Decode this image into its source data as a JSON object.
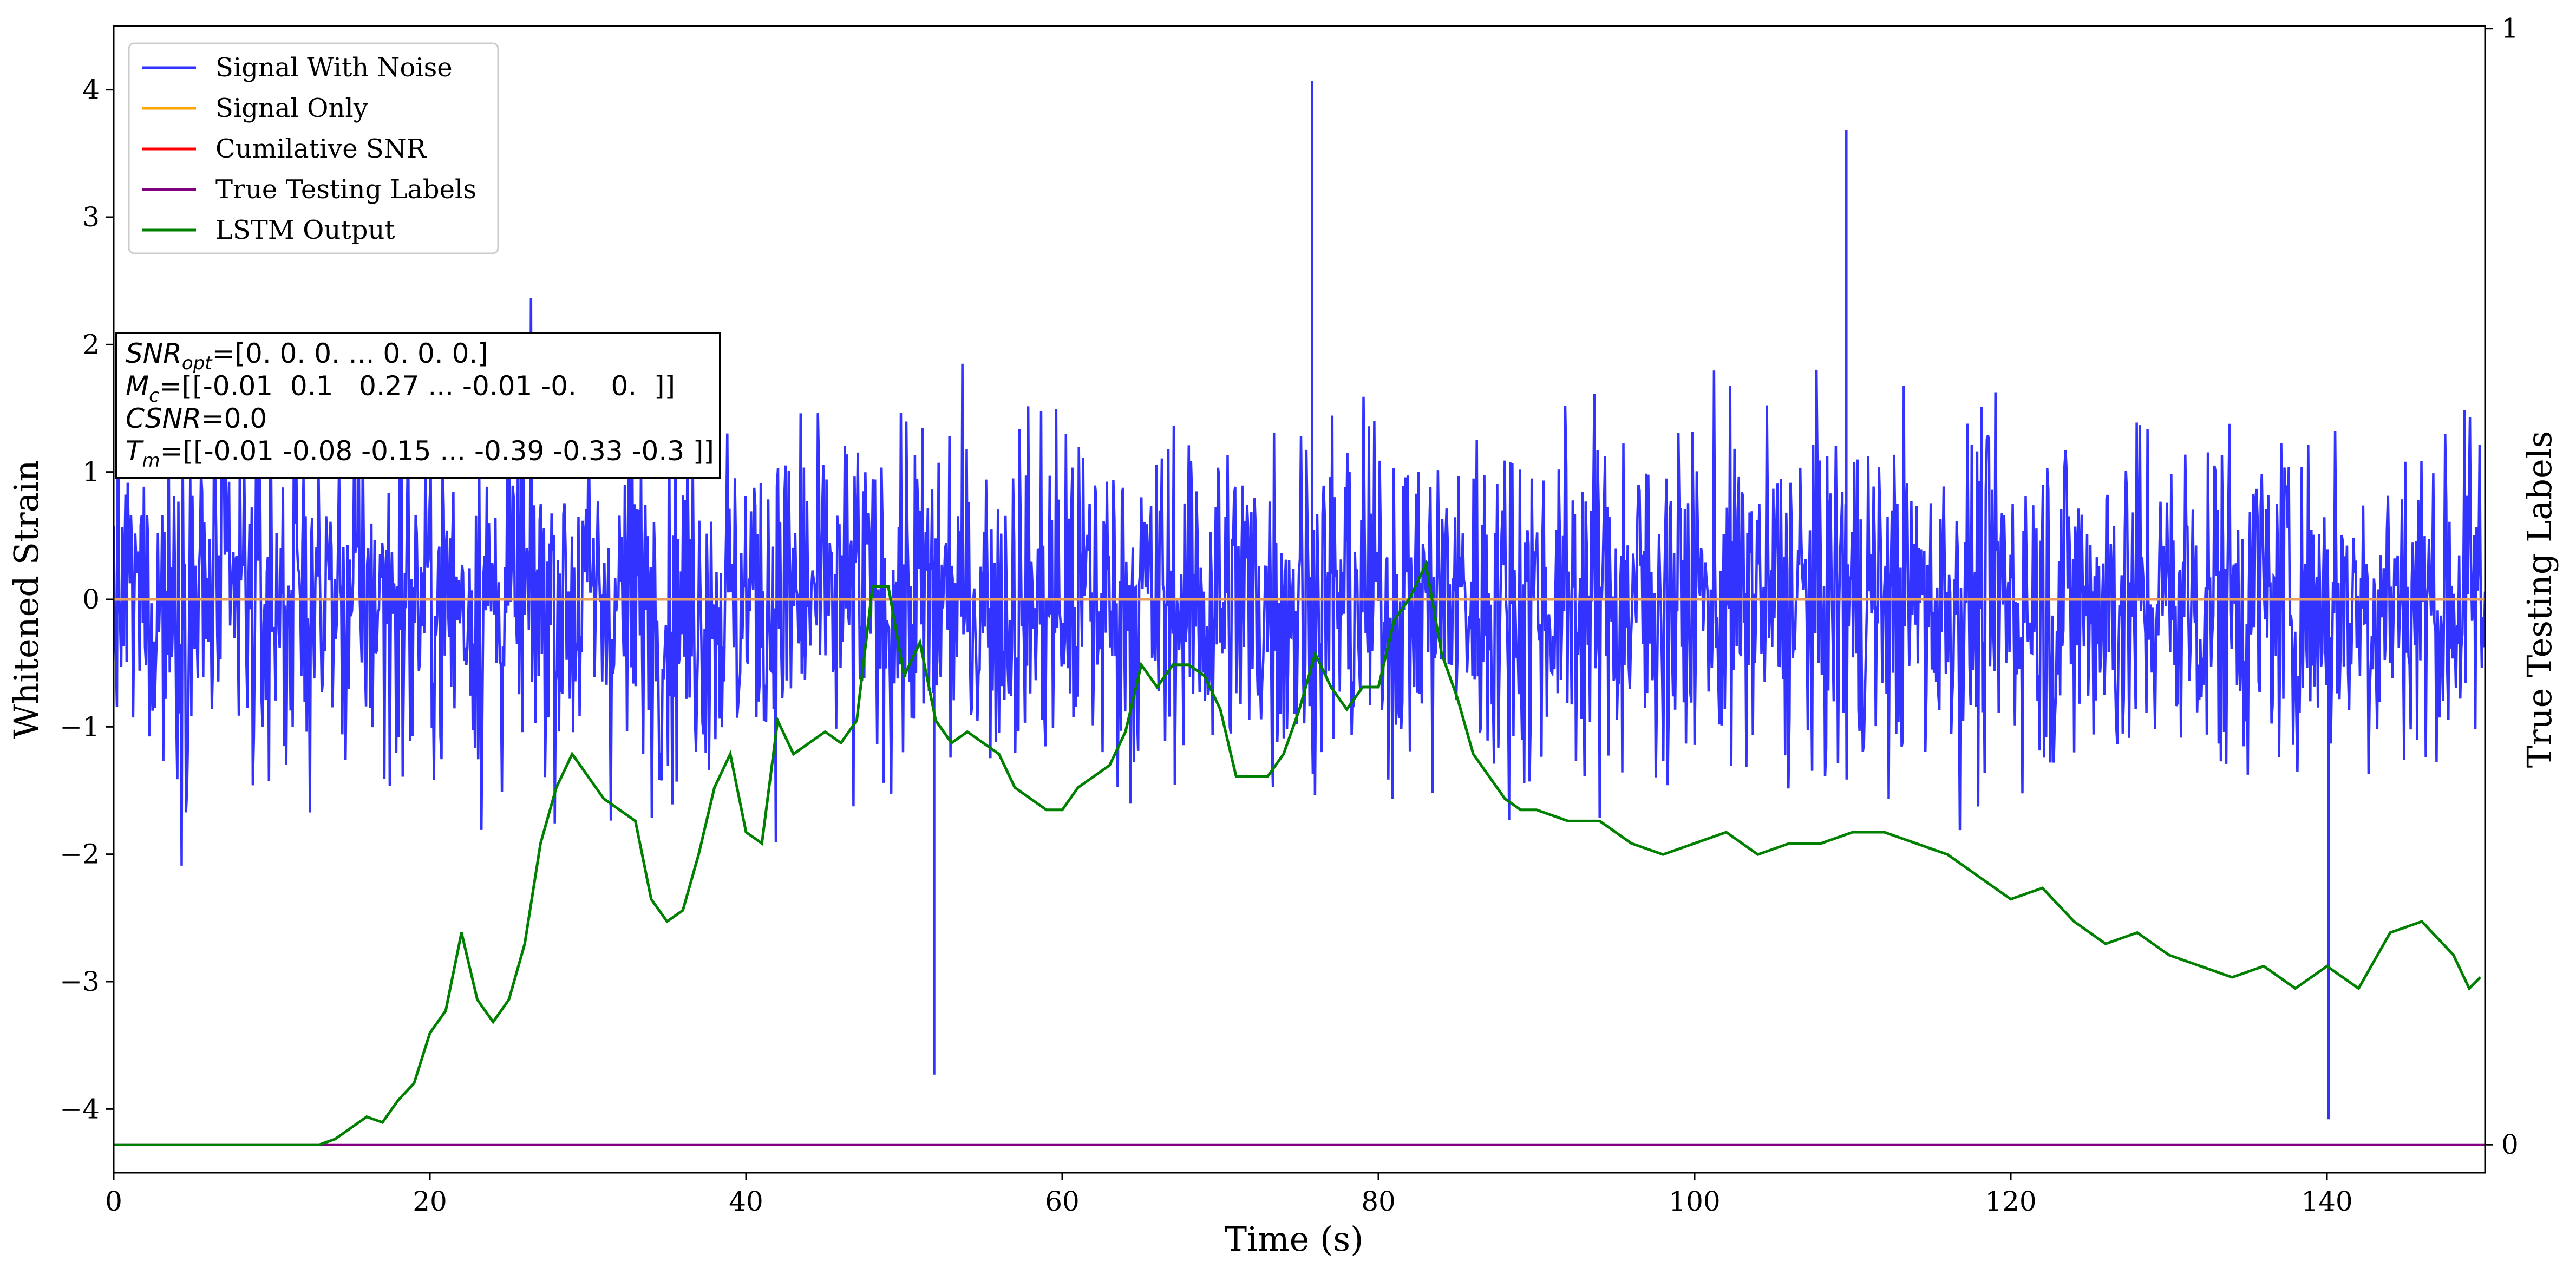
{
  "chart_data": {
    "type": "line",
    "xlabel": "Time (s)",
    "ylabel": "Whitened Strain",
    "y2label": "True Testing Labels",
    "xlim": [
      0,
      150
    ],
    "ylim": [
      -4.5,
      4.5
    ],
    "y2lim": [
      0,
      1
    ],
    "x_ticks": [
      "0",
      "20",
      "40",
      "60",
      "80",
      "100",
      "120",
      "140"
    ],
    "y_ticks": [
      "4",
      "3",
      "2",
      "1",
      "0",
      "−1",
      "−2",
      "−3",
      "−4"
    ],
    "y2_ticks": [
      "1",
      "0"
    ],
    "legend_position": "top-left",
    "series": [
      {
        "name": "Signal With Noise",
        "color": "#3333ff",
        "description_of_values": "dense noise trace spanning roughly -4.1 to 4.1 over 0–150 s",
        "approx_range": [
          -4.1,
          4.1
        ],
        "notable_peaks": [
          [
            75.8,
            4.07
          ],
          [
            109.6,
            3.68
          ],
          [
            140.1,
            -4.08
          ],
          [
            51.9,
            -3.73
          ]
        ]
      },
      {
        "name": "Signal Only",
        "color": "#ffa500",
        "x": [
          0,
          150
        ],
        "y": [
          0,
          0
        ]
      },
      {
        "name": "Cumilative SNR",
        "color": "#ff0000",
        "x": [],
        "y": []
      },
      {
        "name": "True Testing Labels",
        "color": "#800080",
        "x": [
          0,
          150
        ],
        "y": [
          0,
          0
        ]
      },
      {
        "name": "LSTM Output",
        "color": "#008000",
        "x": [
          0,
          5,
          10,
          13,
          14,
          15,
          16,
          17,
          18,
          19,
          20,
          21,
          22,
          23,
          24,
          25,
          26,
          27,
          28,
          29,
          30,
          31,
          32,
          33,
          34,
          35,
          36,
          37,
          38,
          39,
          40,
          41,
          42,
          43,
          44,
          45,
          46,
          47,
          48,
          49,
          50,
          51,
          52,
          53,
          54,
          55,
          56,
          57,
          58,
          59,
          60,
          61,
          62,
          63,
          64,
          65,
          66,
          67,
          68,
          69,
          70,
          71,
          72,
          73,
          74,
          75,
          76,
          77,
          78,
          79,
          80,
          81,
          82,
          83,
          84,
          85,
          86,
          87,
          88,
          89,
          90,
          92,
          94,
          96,
          98,
          100,
          102,
          104,
          106,
          108,
          110,
          112,
          114,
          116,
          118,
          120,
          122,
          124,
          126,
          128,
          130,
          132,
          134,
          136,
          138,
          140,
          142,
          144,
          146,
          148,
          149,
          149.7
        ],
        "y": [
          0.0,
          0.0,
          0.0,
          0.0,
          0.005,
          0.015,
          0.025,
          0.02,
          0.04,
          0.055,
          0.1,
          0.12,
          0.19,
          0.13,
          0.11,
          0.13,
          0.18,
          0.27,
          0.32,
          0.35,
          0.33,
          0.31,
          0.3,
          0.29,
          0.22,
          0.2,
          0.21,
          0.26,
          0.32,
          0.35,
          0.28,
          0.27,
          0.38,
          0.35,
          0.36,
          0.37,
          0.36,
          0.38,
          0.5,
          0.5,
          0.42,
          0.45,
          0.38,
          0.36,
          0.37,
          0.36,
          0.35,
          0.32,
          0.31,
          0.3,
          0.3,
          0.32,
          0.33,
          0.34,
          0.37,
          0.43,
          0.41,
          0.43,
          0.43,
          0.42,
          0.39,
          0.33,
          0.33,
          0.33,
          0.35,
          0.39,
          0.44,
          0.41,
          0.39,
          0.41,
          0.41,
          0.47,
          0.49,
          0.52,
          0.44,
          0.4,
          0.35,
          0.33,
          0.31,
          0.3,
          0.3,
          0.29,
          0.29,
          0.27,
          0.26,
          0.27,
          0.28,
          0.26,
          0.27,
          0.27,
          0.28,
          0.28,
          0.27,
          0.26,
          0.24,
          0.22,
          0.23,
          0.2,
          0.18,
          0.19,
          0.17,
          0.16,
          0.15,
          0.16,
          0.14,
          0.16,
          0.14,
          0.19,
          0.2,
          0.17,
          0.14,
          0.15
        ]
      }
    ],
    "annotation_lines": [
      "SNR_opt=[0. 0. 0. ... 0. 0. 0.]",
      "M_c=[[-0.01  0.1   0.27 ... -0.01 -0.    0.  ]]",
      "CSNR=0.0",
      "T_m=[[-0.01 -0.08 -0.15 ... -0.39 -0.33 -0.3 ]]"
    ]
  },
  "annotation": {
    "snr_sym": "SNR",
    "snr_sub": "opt",
    "snr_val": "=[0. 0. 0. ... 0. 0. 0.]",
    "mc_sym": "M",
    "mc_sub": "c",
    "mc_val": "=[[-0.01  0.1   0.27 ... -0.01 -0.    0.  ]]",
    "csnr_sym": "CSNR",
    "csnr_val": "=0.0",
    "tm_sym": "T",
    "tm_sub": "m",
    "tm_val": "=[[-0.01 -0.08 -0.15 ... -0.39 -0.33 -0.3 ]]"
  }
}
